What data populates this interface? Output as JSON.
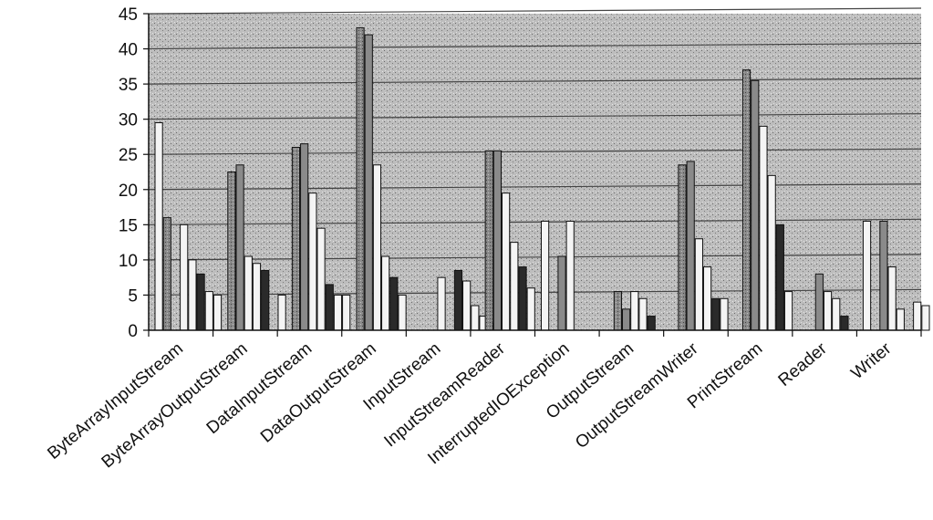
{
  "chart_data": {
    "type": "bar",
    "title": "",
    "xlabel": "",
    "ylabel": "",
    "ylim": [
      0,
      45
    ],
    "yticks": [
      0,
      5,
      10,
      15,
      20,
      25,
      30,
      35,
      40,
      45
    ],
    "grid": true,
    "legend": "none",
    "categories": [
      "ByteArrayInputStream",
      "ByteArrayOutputStream",
      "DataInputStream",
      "DataOutputStream",
      "InputStream",
      "InputStreamReader",
      "InterruptedIOException",
      "OutputStream",
      "OutputStreamWriter",
      "PrintStream",
      "Reader",
      "Writer"
    ],
    "series": [
      {
        "values": [
          29.5,
          0,
          0,
          0,
          0,
          0,
          15.5,
          0,
          0,
          0,
          0,
          15.5
        ]
      },
      {
        "values": [
          16,
          22.5,
          26,
          43,
          0,
          25.5,
          0,
          5.5,
          23.5,
          37,
          0,
          0
        ]
      },
      {
        "values": [
          0,
          23.5,
          26.5,
          42,
          0,
          25.5,
          10.5,
          3,
          24,
          35.5,
          8,
          15.5
        ]
      },
      {
        "values": [
          15,
          10.5,
          19.5,
          23.5,
          7.5,
          19.5,
          15.5,
          5.5,
          13,
          29,
          5.5,
          9
        ]
      },
      {
        "values": [
          10,
          9.5,
          14.5,
          10.5,
          0,
          12.5,
          0,
          4.5,
          9,
          22,
          4.5,
          3
        ]
      },
      {
        "values": [
          8,
          8.5,
          6.5,
          7.5,
          8.5,
          9,
          0,
          2,
          4.5,
          15,
          2,
          0
        ]
      },
      {
        "values": [
          5.5,
          0,
          5,
          5,
          7,
          6,
          0,
          0,
          4.5,
          5.5,
          0,
          4
        ]
      },
      {
        "values": [
          5,
          5,
          5,
          0,
          3.5,
          0,
          0,
          0,
          0,
          0,
          0,
          3.5
        ]
      },
      {
        "values": [
          0,
          0,
          0,
          0,
          2,
          0,
          0,
          0,
          0,
          0,
          0,
          0
        ]
      },
      {
        "values": [
          0,
          0,
          0,
          0,
          1,
          0,
          0,
          0,
          0,
          0,
          0,
          0
        ]
      }
    ],
    "colors": {
      "plot_background": "#b9b9b9",
      "gridline": "#444444",
      "bar_light": "#f4f4f4",
      "bar_medium": "#8a8a8a",
      "bar_dark": "#2a2a2a",
      "bar_stroke": "#111111"
    }
  }
}
